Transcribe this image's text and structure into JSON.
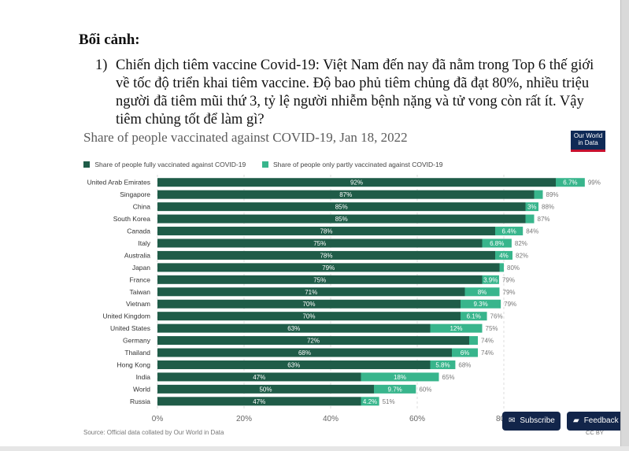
{
  "document": {
    "heading": "Bối cảnh:",
    "item_number": "1)",
    "item_text": "Chiến dịch tiêm vaccine Covid-19: Việt Nam đến nay đã nằm trong Top 6 thế giới về tốc độ triển khai tiêm vaccine. Độ bao phủ tiêm chủng đã đạt 80%, nhiều triệu người đã tiêm mũi thứ 3, tỷ lệ người nhiễm bệnh nặng và tử vong còn rất ít. Vậy tiêm chủng tốt để làm gì?"
  },
  "logo": {
    "line1": "Our World",
    "line2": "in Data"
  },
  "buttons": {
    "subscribe": "Subscribe",
    "feedback": "Feedback"
  },
  "footer": {
    "source": "Source: Official data collated by Our World in Data",
    "license": "CC BY"
  },
  "colors": {
    "fully": "#1f5c48",
    "partly": "#38b58c"
  },
  "chart_data": {
    "type": "bar",
    "orientation": "horizontal",
    "stacked": true,
    "title": "Share of people vaccinated against COVID-19, Jan 18, 2022",
    "categories": [
      "United Arab Emirates",
      "Singapore",
      "China",
      "South Korea",
      "Canada",
      "Italy",
      "Australia",
      "Japan",
      "France",
      "Taiwan",
      "Vietnam",
      "United Kingdom",
      "United States",
      "Germany",
      "Thailand",
      "Hong Kong",
      "India",
      "World",
      "Russia"
    ],
    "series": [
      {
        "name": "Share of people fully vaccinated against COVID-19",
        "values": [
          92,
          87,
          85,
          85,
          78,
          75,
          78,
          79,
          75,
          71,
          70,
          70,
          63,
          72,
          68,
          63,
          47,
          50,
          47
        ],
        "labels": [
          "92%",
          "87%",
          "85%",
          "85%",
          "78%",
          "75%",
          "78%",
          "79%",
          "75%",
          "71%",
          "70%",
          "70%",
          "63%",
          "72%",
          "68%",
          "63%",
          "47%",
          "50%",
          "47%"
        ]
      },
      {
        "name": "Share of people only partly vaccinated against COVID-19",
        "values": [
          6.7,
          2,
          3,
          2,
          6.4,
          6.8,
          4,
          1,
          3.9,
          8,
          9.3,
          6.1,
          12,
          2,
          6,
          5.8,
          18,
          9.7,
          4.2
        ],
        "labels": [
          "6.7%",
          "",
          "3%",
          "",
          "6.4%",
          "6.8%",
          "4%",
          "",
          "3.9%",
          "8%",
          "9.3%",
          "6.1%",
          "12%",
          "",
          "6%",
          "5.8%",
          "18%",
          "9.7%",
          "4.2%"
        ]
      }
    ],
    "totals": [
      "99%",
      "89%",
      "88%",
      "87%",
      "84%",
      "82%",
      "82%",
      "80%",
      "79%",
      "79%",
      "79%",
      "76%",
      "75%",
      "74%",
      "74%",
      "68%",
      "65%",
      "60%",
      "51%"
    ],
    "x_ticks": [
      {
        "value": 0,
        "label": "0%"
      },
      {
        "value": 20,
        "label": "20%"
      },
      {
        "value": 40,
        "label": "40%"
      },
      {
        "value": 60,
        "label": "60%"
      },
      {
        "value": 80,
        "label": "80%"
      }
    ],
    "xlim": [
      0,
      100
    ],
    "grid": true,
    "legend_position": "top-left"
  }
}
